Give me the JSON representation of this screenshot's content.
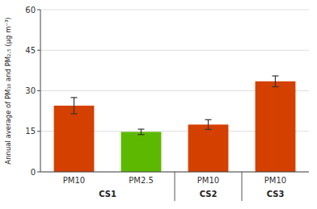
{
  "chart_data": {
    "type": "bar",
    "categories": [
      "PM10",
      "PM2.5",
      "PM10",
      "PM10"
    ],
    "groups": [
      "CS1",
      "CS1",
      "CS2",
      "CS3"
    ],
    "values": [
      24.5,
      14.8,
      17.5,
      33.5
    ],
    "errors": [
      3.0,
      1.0,
      1.8,
      2.0
    ],
    "colors": [
      "#d44000",
      "#5cb800",
      "#d44000",
      "#d44000"
    ],
    "ylabel": "Annual average of PM₁₀ and PM₂.₅ (μg m⁻³)",
    "ylim": [
      0,
      60
    ],
    "yticks": [
      0,
      15,
      30,
      45,
      60
    ],
    "grid": true
  }
}
